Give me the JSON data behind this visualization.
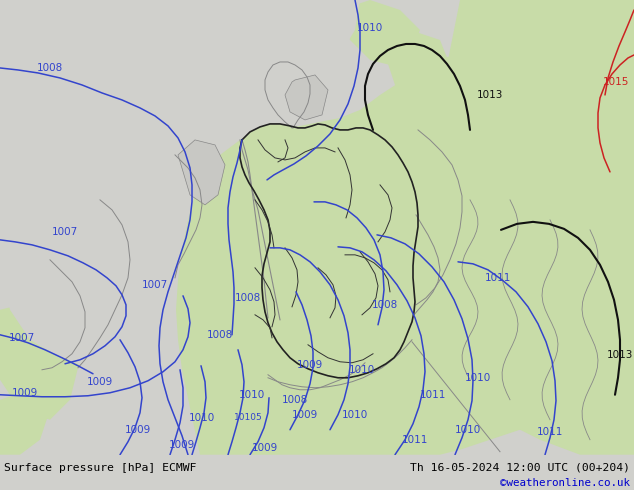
{
  "title_left": "Surface pressure [hPa] ECMWF",
  "title_right": "Th 16-05-2024 12:00 UTC (00+204)",
  "credit": "©weatheronline.co.uk",
  "sea_color": "#d0d0cc",
  "land_green": "#c8dca8",
  "land_green_light": "#d4e8b4",
  "land_green_dark": "#b8cc98",
  "land_gray": "#c8c8c4",
  "germany_fill": "#c8dca8",
  "border_dark": "#222222",
  "border_gray": "#888888",
  "footer_bg": "#c8dca8",
  "blue_iso": "#3344cc",
  "red_iso": "#cc2222",
  "black_iso": "#111111",
  "figsize": [
    6.34,
    4.9
  ],
  "dpi": 100
}
